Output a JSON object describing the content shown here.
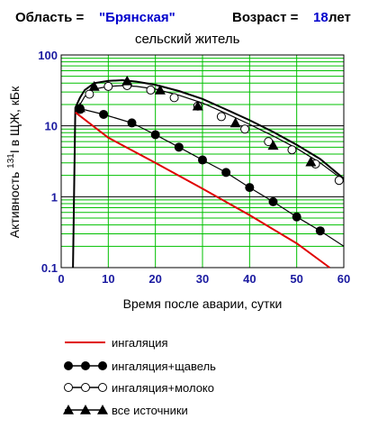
{
  "header": {
    "region_label": "Область = ",
    "region_value": "\"Брянская\"",
    "age_label": "Возраст = ",
    "age_value": "18",
    "age_unit": " лет",
    "subtitle": "сельский житель"
  },
  "colors": {
    "grid": "#00c000",
    "tick_labels": "#1a1aa0",
    "blue_text": "#0000cc",
    "inhalation": "#e00000",
    "series_dark": "#000000"
  },
  "chart_data": {
    "type": "line",
    "xlabel": "Время после аварии, сутки",
    "ylabel_prefix": "Активность ",
    "ylabel_sup": "131",
    "ylabel_suffix": "I в ЩЖ, кБк",
    "xlim": [
      0,
      60
    ],
    "ylim": [
      0.1,
      100
    ],
    "y_scale": "log",
    "x_ticks": [
      0,
      10,
      20,
      30,
      40,
      50,
      60
    ],
    "y_ticks": [
      0.1,
      1,
      10,
      100
    ],
    "y_tick_labels": [
      "0.1",
      "1",
      "10",
      "100"
    ],
    "grid": true,
    "legend_position": "bottom",
    "series": [
      {
        "name": "ингаляция",
        "color": "#e00000",
        "marker": "none",
        "x": [
          3,
          10,
          20,
          30,
          40,
          50,
          57
        ],
        "y": [
          15.5,
          6.8,
          3.0,
          1.3,
          0.55,
          0.22,
          0.1
        ]
      },
      {
        "name": "ингаляция+щавель",
        "color": "#000000",
        "marker": "filled-circle",
        "x": [
          3,
          4,
          9,
          15,
          20,
          25,
          30,
          35,
          40,
          45,
          50,
          55,
          60
        ],
        "y": [
          16,
          17.5,
          14.5,
          11,
          7.5,
          5.0,
          3.3,
          2.2,
          1.35,
          0.85,
          0.52,
          0.33,
          0.2
        ],
        "marker_x": [
          4,
          9,
          15,
          20,
          25,
          30,
          35,
          40,
          45,
          50,
          55
        ],
        "marker_y": [
          17.5,
          14.5,
          11,
          7.5,
          5.0,
          3.3,
          2.2,
          1.35,
          0.85,
          0.52,
          0.33
        ]
      },
      {
        "name": "ингаляция+молоко",
        "color": "#000000",
        "marker": "open-circle",
        "x": [
          2.5,
          3,
          4,
          5,
          7,
          10,
          13,
          16,
          20,
          25,
          30,
          35,
          40,
          45,
          50,
          55,
          60
        ],
        "y": [
          0.1,
          16,
          20,
          26,
          33,
          36,
          37,
          36,
          33,
          27,
          21,
          15,
          10.5,
          7.2,
          4.8,
          3.0,
          1.7
        ],
        "marker_x": [
          4,
          6,
          10,
          14,
          19,
          24,
          29,
          34,
          39,
          44,
          49,
          54,
          59
        ],
        "marker_y": [
          17,
          28,
          36,
          37,
          32,
          25,
          19,
          13.5,
          9,
          6.0,
          4.6,
          2.9,
          1.7
        ]
      },
      {
        "name": "все источники",
        "color": "#000000",
        "marker": "filled-triangle",
        "x": [
          2.5,
          3,
          4,
          5,
          7,
          10,
          13,
          16,
          20,
          25,
          30,
          35,
          40,
          45,
          50,
          55,
          60
        ],
        "y": [
          0.1,
          18,
          25,
          32,
          40,
          43,
          44,
          42,
          38,
          31,
          24,
          17,
          12,
          8.2,
          5.4,
          3.4,
          1.8
        ],
        "marker_x": [
          4,
          7,
          14,
          21,
          29,
          37,
          45,
          53
        ],
        "marker_y": [
          18,
          36,
          43,
          32,
          19,
          11,
          5.3,
          3.1
        ]
      }
    ]
  }
}
